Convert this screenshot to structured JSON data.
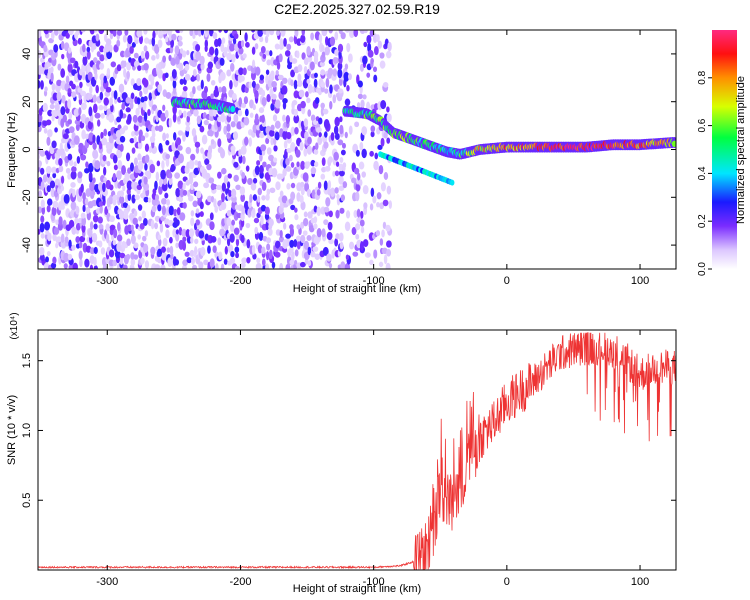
{
  "title": "C2E2.2025.327.02.59.R19",
  "chart_data": [
    {
      "type": "heatmap",
      "xlabel": "Height of straight line (km)",
      "ylabel": "Frequency (Hz)",
      "xlim": [
        -352,
        127
      ],
      "ylim": [
        -50,
        50
      ],
      "xticks": [
        -300,
        -200,
        -100,
        0,
        100
      ],
      "yticks": [
        -40,
        -20,
        0,
        20,
        40
      ],
      "colorbar": {
        "label": "Normalized spectral amplitude",
        "range": [
          0.0,
          1.0
        ],
        "ticks": [
          "0.0",
          "0.2",
          "0.4",
          "0.6",
          "0.8"
        ],
        "tick_values": [
          0.0,
          0.2,
          0.4,
          0.6,
          0.8
        ]
      },
      "ridge": {
        "description_points_x_km": [
          -250,
          -235,
          -220,
          -205,
          -120,
          -105,
          -95,
          -85,
          -75,
          -65,
          -55,
          -45,
          -35,
          -20,
          0,
          20,
          40,
          60,
          80,
          100,
          127
        ],
        "frequency_hz": [
          20,
          19,
          19,
          17,
          16,
          15,
          12,
          7,
          5,
          3,
          1,
          -1,
          -2,
          0,
          1,
          1,
          1,
          1,
          2,
          2,
          3
        ],
        "amplitude": [
          0.5,
          0.55,
          0.55,
          0.45,
          0.5,
          0.55,
          0.55,
          0.6,
          0.6,
          0.55,
          0.5,
          0.45,
          0.5,
          0.75,
          0.8,
          0.85,
          0.95,
          0.95,
          0.9,
          0.85,
          0.7
        ]
      }
    },
    {
      "type": "line",
      "xlabel": "Height of straight line (km)",
      "ylabel": "SNR (10 * v/v)",
      "multiplier_label": "(x10⁴)",
      "xlim": [
        -352,
        127
      ],
      "ylim": [
        0,
        1.72
      ],
      "xticks": [
        -300,
        -200,
        -100,
        0,
        100
      ],
      "yticks": [
        0.5,
        1.0,
        1.5
      ],
      "series": [
        {
          "name": "SNR",
          "color": "#ee3333",
          "x": [
            -352,
            -300,
            -200,
            -150,
            -100,
            -80,
            -70,
            -60,
            -55,
            -50,
            -45,
            -40,
            -35,
            -30,
            -25,
            -20,
            -10,
            0,
            10,
            20,
            30,
            40,
            50,
            60,
            70,
            80,
            90,
            100,
            110,
            127
          ],
          "base": [
            0.02,
            0.02,
            0.02,
            0.02,
            0.02,
            0.03,
            0.06,
            0.15,
            0.3,
            0.55,
            0.45,
            0.5,
            0.6,
            0.7,
            0.8,
            0.95,
            1.05,
            1.2,
            1.28,
            1.35,
            1.45,
            1.55,
            1.58,
            1.6,
            1.6,
            1.58,
            1.5,
            1.4,
            1.45,
            1.45
          ]
        }
      ]
    }
  ],
  "colors": {
    "line": "#ee3333",
    "axis": "#000000",
    "heat_low": "#9040ff"
  }
}
